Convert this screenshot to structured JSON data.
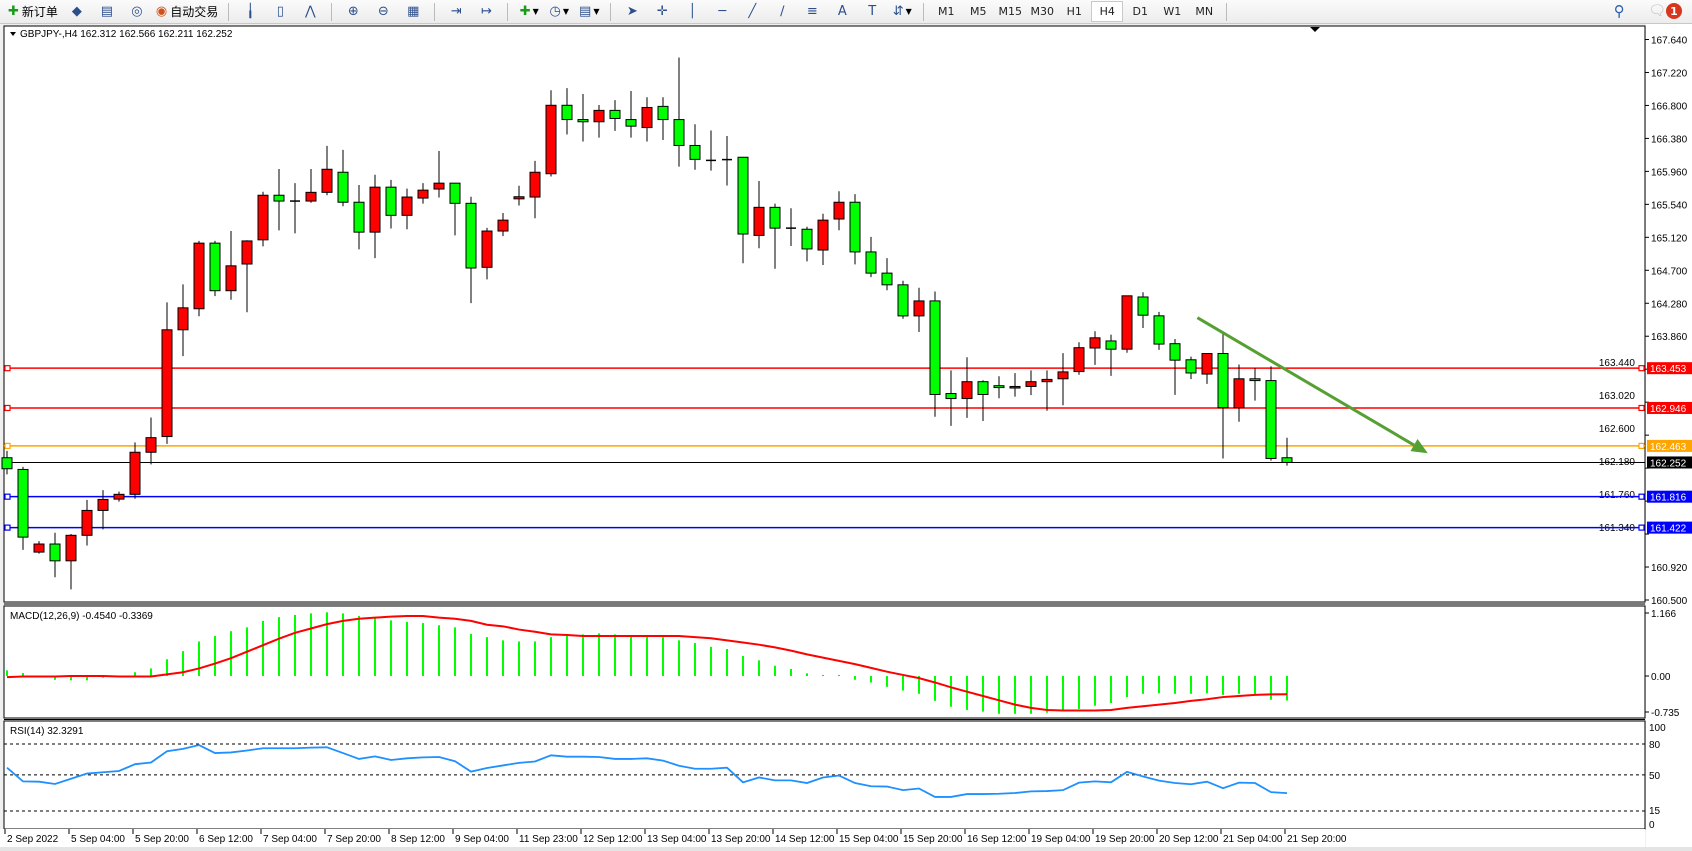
{
  "toolbar": {
    "new_order_label": "新订单",
    "auto_trade_label": "自动交易",
    "icons": [
      "new-order-icon",
      "market-watch-icon",
      "data-window-icon",
      "navigator-icon",
      "auto-trading-icon",
      "bar-chart-icon",
      "candlestick-icon",
      "line-chart-icon",
      "zoom-in-icon",
      "zoom-out-icon",
      "tile-windows-icon",
      "chart-shift-icon",
      "autoscroll-icon",
      "indicators-icon",
      "periods-icon",
      "templates-icon",
      "cursor-icon",
      "crosshair-icon",
      "vertical-line-icon",
      "horizontal-line-icon",
      "trendline-icon",
      "equidistant-channel-icon",
      "fibonacci-icon",
      "text-icon",
      "text-label-icon",
      "arrows-icon"
    ],
    "timeframes": [
      "M1",
      "M5",
      "M15",
      "M30",
      "H1",
      "H4",
      "D1",
      "W1",
      "MN"
    ],
    "active_timeframe": "H4",
    "notification_count": "1"
  },
  "chart": {
    "header": "GBPJPY-,H4  162.312 162.566 162.211 162.252",
    "bull_color": "#ff0000",
    "bear_color": "#00ff00",
    "price_ticks": [
      "167.640",
      "167.220",
      "166.800",
      "166.380",
      "165.960",
      "165.540",
      "165.120",
      "164.700",
      "164.280",
      "163.860",
      "163.440",
      "163.020",
      "162.600",
      "162.180",
      "161.760",
      "161.340",
      "160.920",
      "160.500"
    ],
    "current_price": {
      "value": "162.252",
      "color": "#000000"
    },
    "hlines": [
      {
        "value": "163.453",
        "color": "#ff0000"
      },
      {
        "value": "162.946",
        "color": "#ff0000"
      },
      {
        "value": "162.463",
        "color": "#ffa500"
      },
      {
        "value": "161.816",
        "color": "#0000ff"
      },
      {
        "value": "161.422",
        "color": "#0000ff"
      }
    ],
    "trendline": {
      "start_bar": 74.4,
      "start_price": 164.096,
      "end_bar": 88.8,
      "end_price": 162.37,
      "color": "#55a032"
    },
    "candles": [
      [
        162.312,
        162.4,
        162.1,
        162.172
      ],
      [
        162.163,
        162.195,
        161.138,
        161.301
      ],
      [
        161.11,
        161.25,
        161.09,
        161.213
      ],
      [
        161.213,
        161.357,
        160.789,
        160.999
      ],
      [
        160.999,
        161.34,
        160.635,
        161.324
      ],
      [
        161.324,
        161.776,
        161.194,
        161.641
      ],
      [
        161.641,
        161.9,
        161.399,
        161.781
      ],
      [
        161.785,
        161.88,
        161.753,
        161.846
      ],
      [
        161.846,
        162.508,
        161.79,
        162.382
      ],
      [
        162.382,
        162.824,
        162.228,
        162.568
      ],
      [
        162.582,
        164.291,
        162.489,
        163.942
      ],
      [
        163.942,
        164.52,
        163.607,
        164.222
      ],
      [
        164.21,
        165.074,
        164.114,
        165.046
      ],
      [
        165.046,
        165.074,
        164.371,
        164.44
      ],
      [
        164.44,
        165.2,
        164.324,
        164.757
      ],
      [
        164.78,
        165.083,
        164.166,
        165.074
      ],
      [
        165.088,
        165.7,
        165.004,
        165.656
      ],
      [
        165.656,
        165.99,
        165.209,
        165.582
      ],
      [
        165.582,
        165.81,
        165.17,
        165.582
      ],
      [
        165.582,
        165.99,
        165.56,
        165.693
      ],
      [
        165.693,
        166.285,
        165.656,
        165.987
      ],
      [
        165.949,
        166.234,
        165.516,
        165.567
      ],
      [
        165.567,
        165.787,
        164.967,
        165.186
      ],
      [
        165.186,
        165.917,
        164.855,
        165.759
      ],
      [
        165.759,
        165.852,
        165.232,
        165.4
      ],
      [
        165.4,
        165.74,
        165.223,
        165.633
      ],
      [
        165.62,
        165.81,
        165.55,
        165.721
      ],
      [
        165.735,
        166.22,
        165.628,
        165.81
      ],
      [
        165.81,
        165.81,
        165.144,
        165.553
      ],
      [
        165.553,
        165.637,
        164.282,
        164.729
      ],
      [
        164.738,
        165.24,
        164.585,
        165.2
      ],
      [
        165.2,
        165.43,
        165.135,
        165.339
      ],
      [
        165.61,
        165.777,
        165.526,
        165.637
      ],
      [
        165.633,
        166.094,
        165.363,
        165.949
      ],
      [
        165.93,
        166.993,
        165.894,
        166.802
      ],
      [
        166.802,
        167.02,
        166.43,
        166.62
      ],
      [
        166.62,
        166.946,
        166.34,
        166.592
      ],
      [
        166.592,
        166.806,
        166.39,
        166.737
      ],
      [
        166.737,
        166.867,
        166.476,
        166.634
      ],
      [
        166.62,
        166.984,
        166.39,
        166.536
      ],
      [
        166.518,
        166.904,
        166.34,
        166.774
      ],
      [
        166.788,
        166.904,
        166.36,
        166.62
      ],
      [
        166.62,
        167.41,
        166.02,
        166.29
      ],
      [
        166.29,
        166.56,
        165.98,
        166.113
      ],
      [
        166.1,
        166.48,
        165.97,
        166.1
      ],
      [
        166.11,
        166.41,
        165.78,
        166.11
      ],
      [
        166.14,
        166.14,
        164.79,
        165.162
      ],
      [
        165.144,
        165.838,
        164.98,
        165.502
      ],
      [
        165.502,
        165.55,
        164.72,
        165.237
      ],
      [
        165.237,
        165.49,
        165.01,
        165.237
      ],
      [
        165.223,
        165.255,
        164.814,
        164.972
      ],
      [
        164.958,
        165.42,
        164.767,
        165.339
      ],
      [
        165.353,
        165.707,
        165.21,
        165.567
      ],
      [
        165.567,
        165.67,
        164.776,
        164.934
      ],
      [
        164.934,
        165.125,
        164.613,
        164.664
      ],
      [
        164.664,
        164.855,
        164.445,
        164.515
      ],
      [
        164.515,
        164.566,
        164.082,
        164.119
      ],
      [
        164.119,
        164.477,
        163.914,
        164.31
      ],
      [
        164.31,
        164.43,
        162.834,
        163.118
      ],
      [
        163.13,
        163.425,
        162.718,
        163.066
      ],
      [
        163.066,
        163.593,
        162.82,
        163.281
      ],
      [
        163.281,
        163.3,
        162.78,
        163.118
      ],
      [
        163.23,
        163.35,
        163.07,
        163.206
      ],
      [
        163.2,
        163.39,
        163.09,
        163.22
      ],
      [
        163.22,
        163.425,
        163.11,
        163.281
      ],
      [
        163.281,
        163.425,
        162.91,
        163.31
      ],
      [
        163.318,
        163.645,
        162.98,
        163.406
      ],
      [
        163.41,
        163.784,
        163.37,
        163.714
      ],
      [
        163.71,
        163.924,
        163.495,
        163.84
      ],
      [
        163.8,
        163.88,
        163.355,
        163.695
      ],
      [
        163.695,
        164.375,
        163.65,
        164.375
      ],
      [
        164.36,
        164.42,
        163.965,
        164.128
      ],
      [
        164.12,
        164.17,
        163.686,
        163.76
      ],
      [
        163.765,
        163.825,
        163.113,
        163.555
      ],
      [
        163.56,
        163.6,
        163.313,
        163.392
      ],
      [
        163.378,
        163.64,
        163.253,
        163.64
      ],
      [
        163.64,
        163.905,
        162.303,
        162.95
      ],
      [
        162.95,
        163.5,
        162.77,
        163.318
      ],
      [
        163.318,
        163.453,
        163.04,
        163.295
      ],
      [
        163.295,
        163.476,
        162.275,
        162.303
      ],
      [
        162.312,
        162.566,
        162.211,
        162.252
      ]
    ]
  },
  "macd": {
    "label": "MACD(12,26,9) -0.4540 -0.3369",
    "ticks": [
      "1.166",
      "0.00",
      "-0.735"
    ],
    "hist_color": "#00ff00",
    "signal_color": "#ff0000",
    "histogram": [
      0.105,
      0.056,
      0,
      -0.07,
      -0.08,
      -0.08,
      -0.03,
      0,
      0.07,
      0.14,
      0.31,
      0.46,
      0.64,
      0.74,
      0.83,
      0.9,
      1.02,
      1.09,
      1.13,
      1.16,
      1.18,
      1.16,
      1.11,
      1.08,
      1.03,
      1.0,
      0.98,
      0.94,
      0.9,
      0.78,
      0.72,
      0.66,
      0.64,
      0.64,
      0.72,
      0.76,
      0.77,
      0.79,
      0.77,
      0.76,
      0.76,
      0.72,
      0.66,
      0.61,
      0.54,
      0.5,
      0.37,
      0.29,
      0.19,
      0.13,
      0.05,
      0.02,
      0.02,
      -0.07,
      -0.12,
      -0.2,
      -0.27,
      -0.33,
      -0.46,
      -0.57,
      -0.63,
      -0.66,
      -0.7,
      -0.7,
      -0.7,
      -0.68,
      -0.64,
      -0.61,
      -0.55,
      -0.5,
      -0.39,
      -0.33,
      -0.32,
      -0.33,
      -0.33,
      -0.32,
      -0.35,
      -0.33,
      -0.35,
      -0.44,
      -0.454
    ],
    "signal": [
      -0.02,
      -0.01,
      -0.01,
      -0.01,
      0,
      0,
      0,
      -0.01,
      -0.01,
      -0.01,
      0.03,
      0.07,
      0.14,
      0.23,
      0.33,
      0.45,
      0.57,
      0.69,
      0.8,
      0.88,
      0.96,
      1.02,
      1.06,
      1.08,
      1.1,
      1.11,
      1.11,
      1.08,
      1.06,
      1.02,
      0.95,
      0.92,
      0.86,
      0.82,
      0.77,
      0.76,
      0.74,
      0.74,
      0.74,
      0.74,
      0.74,
      0.74,
      0.74,
      0.72,
      0.7,
      0.66,
      0.62,
      0.58,
      0.53,
      0.47,
      0.4,
      0.34,
      0.28,
      0.22,
      0.15,
      0.08,
      0.02,
      -0.04,
      -0.12,
      -0.21,
      -0.29,
      -0.37,
      -0.45,
      -0.53,
      -0.59,
      -0.63,
      -0.64,
      -0.64,
      -0.64,
      -0.63,
      -0.59,
      -0.56,
      -0.53,
      -0.5,
      -0.46,
      -0.43,
      -0.39,
      -0.37,
      -0.35,
      -0.34,
      -0.337
    ]
  },
  "rsi": {
    "label": "RSI(14) 32.3291",
    "ticks": [
      "100",
      "80",
      "50",
      "15",
      "0"
    ],
    "levels": [
      80,
      50,
      15
    ],
    "color": "#1e90ff",
    "values": [
      57,
      43.7,
      43.4,
      41.2,
      46.3,
      51.3,
      52.6,
      53.8,
      60.4,
      62,
      73,
      75.3,
      79,
      71.2,
      71.8,
      73.7,
      75.9,
      75.9,
      75.9,
      76.5,
      76.8,
      71.2,
      65.5,
      68,
      64.5,
      66.1,
      67,
      67.4,
      63.3,
      53.2,
      56.7,
      59.2,
      61.7,
      63,
      69,
      67.7,
      67.7,
      67.4,
      65.5,
      65.5,
      66.1,
      63.9,
      58.9,
      56,
      56,
      57,
      42.8,
      47.5,
      44.7,
      44.7,
      42.1,
      47.5,
      49.4,
      42.1,
      39,
      38.7,
      35.2,
      36.8,
      28.6,
      28.6,
      31.4,
      31.4,
      31.7,
      32.4,
      34,
      34.3,
      35.2,
      42.5,
      43.7,
      42.8,
      52.9,
      48.5,
      44.4,
      42.1,
      40.9,
      43.4,
      37.1,
      42.5,
      42.1,
      33.3,
      32.33
    ]
  },
  "time_axis": [
    {
      "bar": 0,
      "label": "2 Sep 2022"
    },
    {
      "bar": 4,
      "label": "5 Sep 04:00"
    },
    {
      "bar": 8,
      "label": "5 Sep 20:00"
    },
    {
      "bar": 12,
      "label": "6 Sep 12:00"
    },
    {
      "bar": 16,
      "label": "7 Sep 04:00"
    },
    {
      "bar": 20,
      "label": "7 Sep 20:00"
    },
    {
      "bar": 24,
      "label": "8 Sep 12:00"
    },
    {
      "bar": 28,
      "label": "9 Sep 04:00"
    },
    {
      "bar": 32,
      "label": "11 Sep 23:00"
    },
    {
      "bar": 36,
      "label": "12 Sep 12:00"
    },
    {
      "bar": 40,
      "label": "13 Sep 04:00"
    },
    {
      "bar": 44,
      "label": "13 Sep 20:00"
    },
    {
      "bar": 48,
      "label": "14 Sep 12:00"
    },
    {
      "bar": 52,
      "label": "15 Sep 04:00"
    },
    {
      "bar": 56,
      "label": "15 Sep 20:00"
    },
    {
      "bar": 60,
      "label": "16 Sep 12:00"
    },
    {
      "bar": 64,
      "label": "19 Sep 04:00"
    },
    {
      "bar": 68,
      "label": "19 Sep 20:00"
    },
    {
      "bar": 72,
      "label": "20 Sep 12:00"
    },
    {
      "bar": 76,
      "label": "21 Sep 04:00"
    },
    {
      "bar": 80,
      "label": "21 Sep 20:00"
    }
  ]
}
